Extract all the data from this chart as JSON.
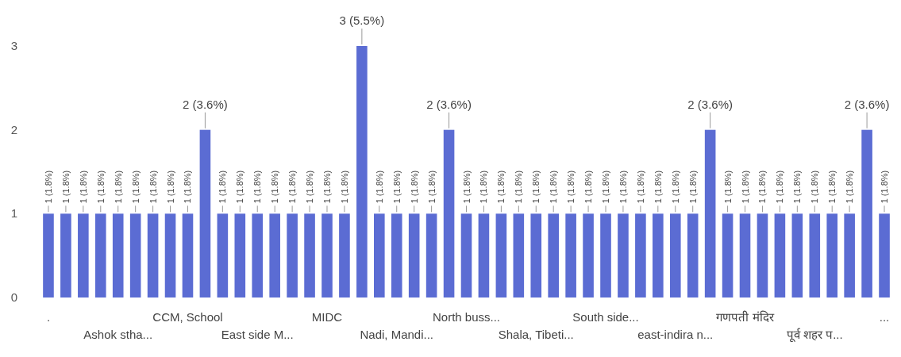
{
  "chart_data": {
    "type": "bar",
    "categories": [
      ".",
      null,
      null,
      null,
      "Ashok stha...",
      null,
      null,
      null,
      "CCM, School",
      null,
      null,
      null,
      "East side M...",
      null,
      null,
      null,
      "MIDC",
      null,
      null,
      null,
      "Nadi, Mandi...",
      null,
      null,
      null,
      "North buss...",
      null,
      null,
      null,
      "Shala, Tibeti...",
      null,
      null,
      null,
      "South side...",
      null,
      null,
      null,
      "east-indira n...",
      null,
      null,
      null,
      "गणपती मंदिर",
      null,
      null,
      null,
      "पूर्व शहर प...",
      null,
      null,
      null,
      "..."
    ],
    "values": [
      1,
      1,
      1,
      1,
      1,
      1,
      1,
      1,
      1,
      2,
      1,
      1,
      1,
      1,
      1,
      1,
      1,
      1,
      3,
      1,
      1,
      1,
      1,
      2,
      1,
      1,
      1,
      1,
      1,
      1,
      1,
      1,
      1,
      1,
      1,
      1,
      1,
      1,
      2,
      1,
      1,
      1,
      1,
      1,
      1,
      1,
      1,
      2,
      1
    ],
    "value_labels": [
      "1 (1.8%)",
      "1 (1.8%)",
      "1 (1.8%)",
      "1 (1.8%)",
      "1 (1.8%)",
      "1 (1.8%)",
      "1 (1.8%)",
      "1 (1.8%)",
      "1 (1.8%)",
      "2 (3.6%)",
      "1 (1.8%)",
      "1 (1.8%)",
      "1 (1.8%)",
      "1 (1.8%)",
      "1 (1.8%)",
      "1 (1.8%)",
      "1 (1.8%)",
      "1 (1.8%)",
      "3 (5.5%)",
      "1 (1.8%)",
      "1 (1.8%)",
      "1 (1.8%)",
      "1 (1.8%)",
      "2 (3.6%)",
      "1 (1.8%)",
      "1 (1.8%)",
      "1 (1.8%)",
      "1 (1.8%)",
      "1 (1.8%)",
      "1 (1.8%)",
      "1 (1.8%)",
      "1 (1.8%)",
      "1 (1.8%)",
      "1 (1.8%)",
      "1 (1.8%)",
      "1 (1.8%)",
      "1 (1.8%)",
      "1 (1.8%)",
      "2 (3.6%)",
      "1 (1.8%)",
      "1 (1.8%)",
      "1 (1.8%)",
      "1 (1.8%)",
      "1 (1.8%)",
      "1 (1.8%)",
      "1 (1.8%)",
      "1 (1.8%)",
      "2 (3.6%)",
      "1 (1.8%)"
    ],
    "color": "#5b6cd3",
    "ylim": [
      0,
      3
    ],
    "yticks": [
      0,
      1,
      2,
      3
    ],
    "grid": false
  }
}
